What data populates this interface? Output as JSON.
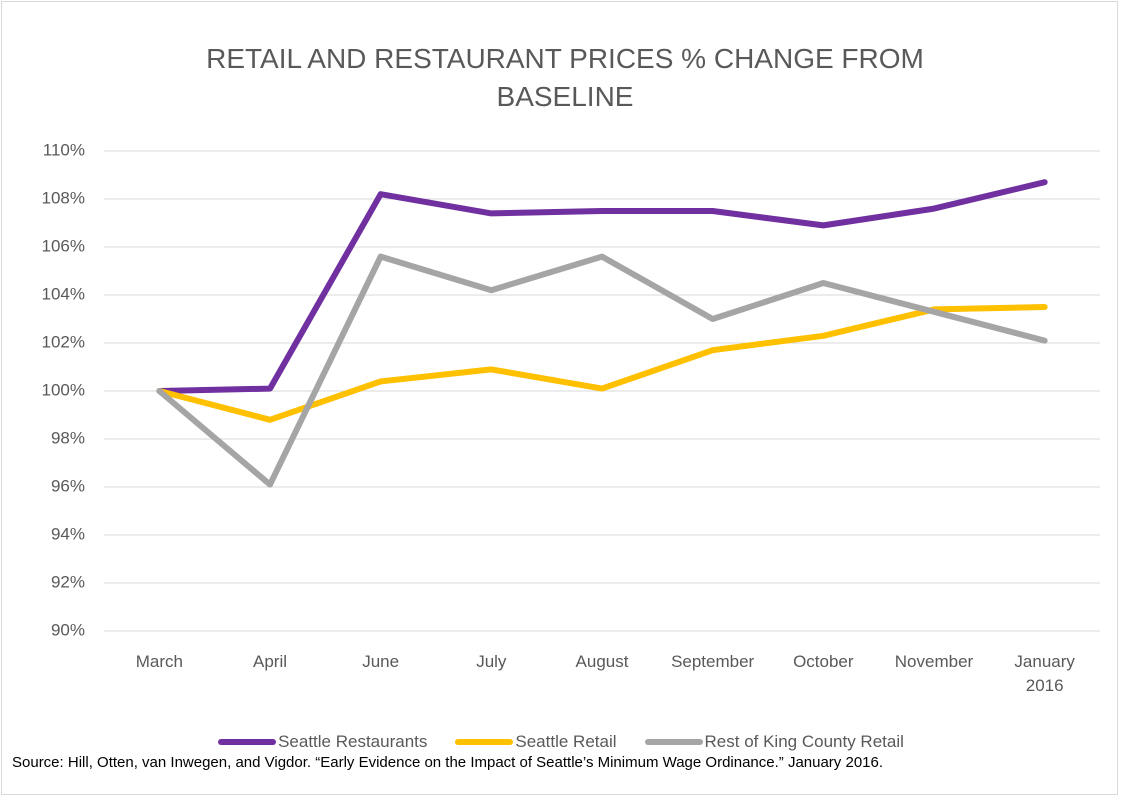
{
  "chart_data": {
    "type": "line",
    "title": "RETAIL AND RESTAURANT PRICES % CHANGE FROM BASELINE",
    "categories": [
      "March",
      "April",
      "June",
      "July",
      "August",
      "September",
      "October",
      "November",
      "January 2016"
    ],
    "series": [
      {
        "name": "Seattle Restaurants",
        "color": "#7030a0",
        "values": [
          100,
          100.1,
          108.2,
          107.4,
          107.5,
          107.5,
          106.9,
          107.6,
          108.7
        ]
      },
      {
        "name": "Seattle Retail",
        "color": "#ffc000",
        "values": [
          100,
          98.8,
          100.4,
          100.9,
          100.1,
          101.7,
          102.3,
          103.4,
          103.5
        ]
      },
      {
        "name": "Rest of King County Retail",
        "color": "#a5a5a5",
        "values": [
          100,
          96.1,
          105.6,
          104.2,
          105.6,
          103.0,
          104.5,
          103.3,
          102.1
        ]
      }
    ],
    "ylim": [
      90,
      110
    ],
    "yticks": [
      {
        "value": 90,
        "label": "90%"
      },
      {
        "value": 92,
        "label": "92%"
      },
      {
        "value": 94,
        "label": "94%"
      },
      {
        "value": 96,
        "label": "96%"
      },
      {
        "value": 98,
        "label": "98%"
      },
      {
        "value": 100,
        "label": "100%"
      },
      {
        "value": 102,
        "label": "102%"
      },
      {
        "value": 104,
        "label": "104%"
      },
      {
        "value": 106,
        "label": "106%"
      },
      {
        "value": 108,
        "label": "108%"
      },
      {
        "value": 110,
        "label": "110%"
      }
    ],
    "grid": true,
    "legend": "bottom",
    "source": "Source: Hill, Otten, van Inwegen, and Vigdor. “Early Evidence on the Impact of Seattle’s Minimum Wage Ordinance.” January 2016."
  }
}
